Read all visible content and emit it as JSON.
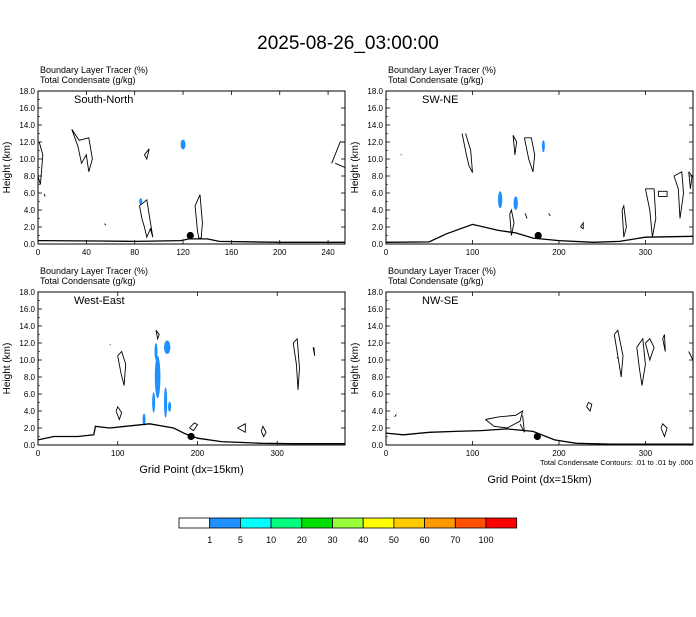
{
  "title": "2025-08-26_03:00:00",
  "colorbar": {
    "colors": [
      "#ffffff",
      "#1e90ff",
      "#00ffff",
      "#00ff7f",
      "#00e000",
      "#9aff3c",
      "#ffff00",
      "#ffcc00",
      "#ff9900",
      "#ff5000",
      "#ff0000"
    ],
    "labels": [
      "1",
      "5",
      "10",
      "20",
      "30",
      "40",
      "50",
      "60",
      "70",
      "100"
    ]
  },
  "chart_data": [
    {
      "type": "contour",
      "label": "South-North",
      "header_line1": "Boundary Layer Tracer   (%)",
      "header_line2": "Total Condensate   (g/kg)",
      "ylabel": "Height (km)",
      "xlabel": "",
      "footnote": "",
      "ylim": [
        0,
        18
      ],
      "xlim": [
        0,
        254
      ],
      "yticks": [
        "0.0",
        "2.0",
        "4.0",
        "6.0",
        "8.0",
        "10.0",
        "12.0",
        "14.0",
        "16.0",
        "18.0"
      ],
      "xticks": [
        0,
        40,
        80,
        120,
        160,
        200,
        240
      ],
      "marker": {
        "x": 126,
        "y": 1.0
      },
      "terrain": [
        [
          0,
          0.4
        ],
        [
          50,
          0.35
        ],
        [
          80,
          0.3
        ],
        [
          100,
          0.35
        ],
        [
          118,
          0.4
        ],
        [
          125,
          0.6
        ],
        [
          140,
          0.6
        ],
        [
          150,
          0.3
        ],
        [
          200,
          0.2
        ],
        [
          254,
          0.2
        ]
      ],
      "tracer_blobs": [
        {
          "x": 120,
          "y": 11.7,
          "rx": 2,
          "ry": 0.6
        },
        {
          "x": 85,
          "y": 5.0,
          "rx": 0.8,
          "ry": 0.4
        }
      ],
      "condensate_contours": [
        [
          [
            28,
            13.5
          ],
          [
            33,
            11.5
          ],
          [
            36,
            9.5
          ],
          [
            40,
            10.5
          ],
          [
            42,
            8.5
          ],
          [
            45,
            10
          ],
          [
            42,
            12.5
          ],
          [
            34,
            12.2
          ],
          [
            28,
            13.5
          ]
        ],
        [
          [
            1,
            12
          ],
          [
            4,
            10.5
          ],
          [
            2,
            7
          ],
          [
            0,
            8
          ]
        ],
        [
          [
            88,
            10.5
          ],
          [
            92,
            11.2
          ],
          [
            90,
            10
          ],
          [
            88,
            10.5
          ]
        ],
        [
          [
            84,
            4.5
          ],
          [
            86,
            3
          ],
          [
            88,
            2
          ],
          [
            90,
            0.8
          ],
          [
            93,
            1.8
          ],
          [
            95,
            0.8
          ],
          [
            90,
            5.2
          ],
          [
            84,
            4.5
          ]
        ],
        [
          [
            130,
            4.5
          ],
          [
            132,
            1.5
          ],
          [
            133,
            0.7
          ],
          [
            135,
            0.7
          ],
          [
            136,
            2.5
          ],
          [
            134,
            5.8
          ],
          [
            130,
            4.5
          ]
        ],
        [
          [
            243,
            9.5
          ],
          [
            250,
            12
          ],
          [
            254,
            12
          ],
          [
            254,
            9
          ],
          [
            246,
            9.5
          ]
        ],
        [
          [
            55,
            2.4
          ],
          [
            56,
            2.2
          ],
          [
            55,
            2.4
          ]
        ],
        [
          [
            5,
            5.9
          ],
          [
            6,
            5.6
          ],
          [
            5,
            5.9
          ]
        ]
      ]
    },
    {
      "type": "contour",
      "label": "SW-NE",
      "header_line1": "Boundary Layer Tracer   (%)",
      "header_line2": "Total Condensate   (g/kg)",
      "ylabel": "Height (km)",
      "xlabel": "",
      "footnote": "",
      "ylim": [
        0,
        18
      ],
      "xlim": [
        0,
        355
      ],
      "yticks": [
        "0.0",
        "2.0",
        "4.0",
        "6.0",
        "8.0",
        "10.0",
        "12.0",
        "14.0",
        "16.0",
        "18.0"
      ],
      "xticks": [
        0,
        100,
        200,
        300
      ],
      "marker": {
        "x": 176,
        "y": 1.0
      },
      "terrain": [
        [
          0,
          0.2
        ],
        [
          50,
          0.25
        ],
        [
          70,
          1.2
        ],
        [
          100,
          2.3
        ],
        [
          130,
          1.6
        ],
        [
          150,
          1.3
        ],
        [
          170,
          0.7
        ],
        [
          200,
          0.4
        ],
        [
          240,
          0.2
        ],
        [
          270,
          0.3
        ],
        [
          300,
          0.8
        ],
        [
          355,
          0.9
        ]
      ],
      "tracer_blobs": [
        {
          "x": 132,
          "y": 5.2,
          "rx": 2.5,
          "ry": 1.0
        },
        {
          "x": 150,
          "y": 4.8,
          "rx": 2.5,
          "ry": 0.8
        },
        {
          "x": 182,
          "y": 11.5,
          "rx": 1.5,
          "ry": 0.7
        }
      ],
      "condensate_contours": [
        [
          [
            88,
            13
          ],
          [
            93,
            10.5
          ],
          [
            96,
            9.2
          ],
          [
            100,
            8.4
          ],
          [
            98,
            11
          ],
          [
            92,
            13
          ]
        ],
        [
          [
            160,
            12.5
          ],
          [
            165,
            10
          ],
          [
            170,
            8.5
          ],
          [
            172,
            10.5
          ],
          [
            168,
            12.5
          ],
          [
            160,
            12.5
          ]
        ],
        [
          [
            147,
            12.8
          ],
          [
            149,
            10.5
          ],
          [
            151,
            12
          ],
          [
            147,
            12.8
          ]
        ],
        [
          [
            17,
            10.5
          ],
          [
            18,
            10.5
          ]
        ],
        [
          [
            143,
            3.5
          ],
          [
            145,
            1.0
          ],
          [
            148,
            2.5
          ],
          [
            145,
            4.0
          ],
          [
            143,
            3.5
          ]
        ],
        [
          [
            161,
            3.6
          ],
          [
            163,
            3.0
          ],
          [
            161,
            3.6
          ]
        ],
        [
          [
            273,
            4.0
          ],
          [
            275,
            0.8
          ],
          [
            278,
            2
          ],
          [
            275,
            4.5
          ],
          [
            273,
            4.0
          ]
        ],
        [
          [
            300,
            6.5
          ],
          [
            305,
            4.0
          ],
          [
            308,
            0.8
          ],
          [
            312,
            3.0
          ],
          [
            310,
            6.5
          ],
          [
            300,
            6.5
          ]
        ],
        [
          [
            315,
            5.6
          ],
          [
            325,
            5.6
          ],
          [
            325,
            6.2
          ],
          [
            315,
            6.2
          ],
          [
            315,
            5.6
          ]
        ],
        [
          [
            333,
            8.0
          ],
          [
            338,
            6.5
          ],
          [
            340,
            3.0
          ],
          [
            344,
            6.0
          ],
          [
            342,
            8.5
          ],
          [
            333,
            8.0
          ]
        ],
        [
          [
            350,
            8.5
          ],
          [
            352,
            6.5
          ],
          [
            354,
            8.0
          ],
          [
            350,
            8.5
          ]
        ],
        [
          [
            225,
            2.0
          ],
          [
            228,
            2.5
          ],
          [
            228,
            1.8
          ],
          [
            225,
            2.0
          ]
        ],
        [
          [
            188,
            3.6
          ],
          [
            190,
            3.3
          ],
          [
            188,
            3.6
          ]
        ]
      ]
    },
    {
      "type": "contour",
      "label": "West-East",
      "header_line1": "Boundary Layer Tracer   (%)",
      "header_line2": "Total Condensate   (g/kg)",
      "ylabel": "Height (km)",
      "xlabel": "Grid Point (dx=15km)",
      "footnote": "",
      "ylim": [
        0,
        18
      ],
      "xlim": [
        0,
        385
      ],
      "yticks": [
        "0.0",
        "2.0",
        "4.0",
        "6.0",
        "8.0",
        "10.0",
        "12.0",
        "14.0",
        "16.0",
        "18.0"
      ],
      "xticks": [
        0,
        100,
        200,
        300
      ],
      "marker": {
        "x": 192,
        "y": 1.0
      },
      "terrain": [
        [
          0,
          0.6
        ],
        [
          20,
          1.0
        ],
        [
          50,
          1.0
        ],
        [
          70,
          1.2
        ],
        [
          72,
          2.2
        ],
        [
          90,
          2.0
        ],
        [
          110,
          2.2
        ],
        [
          140,
          2.5
        ],
        [
          170,
          2.0
        ],
        [
          185,
          1.3
        ],
        [
          200,
          0.8
        ],
        [
          230,
          0.4
        ],
        [
          280,
          0.2
        ],
        [
          320,
          0.15
        ],
        [
          385,
          0.15
        ]
      ],
      "tracer_blobs": [
        {
          "x": 162,
          "y": 11.5,
          "rx": 4,
          "ry": 0.8
        },
        {
          "x": 148,
          "y": 11.0,
          "rx": 1.5,
          "ry": 1.0
        },
        {
          "x": 150,
          "y": 8.0,
          "rx": 3.5,
          "ry": 2.5
        },
        {
          "x": 145,
          "y": 5.0,
          "rx": 1.5,
          "ry": 1.2
        },
        {
          "x": 160,
          "y": 5.0,
          "rx": 2,
          "ry": 1.8
        },
        {
          "x": 133,
          "y": 3.0,
          "rx": 1.5,
          "ry": 0.7
        },
        {
          "x": 165,
          "y": 4.5,
          "rx": 1.5,
          "ry": 0.6
        }
      ],
      "condensate_contours": [
        [
          [
            100,
            10.5
          ],
          [
            104,
            8.5
          ],
          [
            108,
            7.0
          ],
          [
            110,
            9.5
          ],
          [
            105,
            11.0
          ],
          [
            100,
            10.5
          ]
        ],
        [
          [
            148,
            13.5
          ],
          [
            150,
            12.5
          ],
          [
            152,
            13.0
          ],
          [
            148,
            13.5
          ]
        ],
        [
          [
            90,
            11.8
          ],
          [
            91,
            11.8
          ]
        ],
        [
          [
            98,
            4.0
          ],
          [
            102,
            3.0
          ],
          [
            105,
            3.8
          ],
          [
            100,
            4.5
          ],
          [
            98,
            4.0
          ]
        ],
        [
          [
            320,
            12.0
          ],
          [
            324,
            9.5
          ],
          [
            326,
            6.5
          ],
          [
            328,
            9.0
          ],
          [
            325,
            12.5
          ],
          [
            320,
            12.0
          ]
        ],
        [
          [
            345,
            11.5
          ],
          [
            347,
            10.5
          ],
          [
            346,
            11.5
          ]
        ],
        [
          [
            190,
            2.0
          ],
          [
            195,
            1.7
          ],
          [
            200,
            2.4
          ],
          [
            196,
            2.6
          ],
          [
            190,
            2.0
          ]
        ],
        [
          [
            280,
            1.6
          ],
          [
            283,
            1.0
          ],
          [
            286,
            1.5
          ],
          [
            282,
            2.2
          ],
          [
            280,
            1.6
          ]
        ],
        [
          [
            250,
            2.0
          ],
          [
            260,
            2.5
          ],
          [
            260,
            1.5
          ],
          [
            250,
            2.0
          ]
        ]
      ]
    },
    {
      "type": "contour",
      "label": "NW-SE",
      "header_line1": "Boundary Layer Tracer   (%)",
      "header_line2": "Total Condensate   (g/kg)",
      "ylabel": "Height (km)",
      "xlabel": "Grid Point (dx=15km)",
      "footnote": "Total Condensate Contours: .01 to .01 by .000",
      "ylim": [
        0,
        18
      ],
      "xlim": [
        0,
        355
      ],
      "yticks": [
        "0.0",
        "2.0",
        "4.0",
        "6.0",
        "8.0",
        "10.0",
        "12.0",
        "14.0",
        "16.0",
        "18.0"
      ],
      "xticks": [
        0,
        100,
        200,
        300
      ],
      "marker": {
        "x": 175,
        "y": 1.0
      },
      "terrain": [
        [
          0,
          1.4
        ],
        [
          20,
          1.2
        ],
        [
          50,
          1.5
        ],
        [
          80,
          1.6
        ],
        [
          110,
          1.7
        ],
        [
          140,
          1.9
        ],
        [
          170,
          1.6
        ],
        [
          195,
          0.6
        ],
        [
          220,
          0.2
        ],
        [
          260,
          0.1
        ],
        [
          355,
          0.1
        ]
      ],
      "tracer_blobs": [],
      "condensate_contours": [
        [
          [
            115,
            3.0
          ],
          [
            125,
            2.2
          ],
          [
            140,
            2.0
          ],
          [
            155,
            2.8
          ],
          [
            158,
            4.0
          ],
          [
            150,
            3.5
          ],
          [
            130,
            3.3
          ],
          [
            115,
            3.0
          ]
        ],
        [
          [
            155,
            2.5
          ],
          [
            160,
            1.5
          ],
          [
            158,
            3.5
          ]
        ],
        [
          [
            290,
            11.5
          ],
          [
            293,
            9.0
          ],
          [
            296,
            7.0
          ],
          [
            300,
            9.5
          ],
          [
            297,
            12.5
          ],
          [
            290,
            11.5
          ]
        ],
        [
          [
            300,
            12.0
          ],
          [
            305,
            10
          ],
          [
            310,
            11.5
          ],
          [
            305,
            12.5
          ],
          [
            300,
            12.0
          ]
        ],
        [
          [
            264,
            13
          ],
          [
            268,
            10.5
          ],
          [
            272,
            8.0
          ],
          [
            274,
            10.5
          ],
          [
            268,
            13.5
          ],
          [
            264,
            13
          ]
        ],
        [
          [
            320,
            12.5
          ],
          [
            323,
            11.0
          ],
          [
            322,
            13.0
          ],
          [
            320,
            12.5
          ]
        ],
        [
          [
            350,
            11
          ],
          [
            355,
            10
          ],
          [
            355,
            12
          ]
        ],
        [
          [
            232,
            4.5
          ],
          [
            236,
            4.0
          ],
          [
            238,
            4.8
          ],
          [
            234,
            5.0
          ],
          [
            232,
            4.5
          ]
        ],
        [
          [
            318,
            2.0
          ],
          [
            322,
            1.0
          ],
          [
            325,
            2.0
          ],
          [
            320,
            2.5
          ],
          [
            318,
            2.0
          ]
        ],
        [
          [
            10,
            3.3
          ],
          [
            12,
            3.6
          ],
          [
            10,
            3.3
          ]
        ],
        [
          [
            267,
            10.3
          ],
          [
            268,
            10.2
          ]
        ]
      ]
    }
  ]
}
